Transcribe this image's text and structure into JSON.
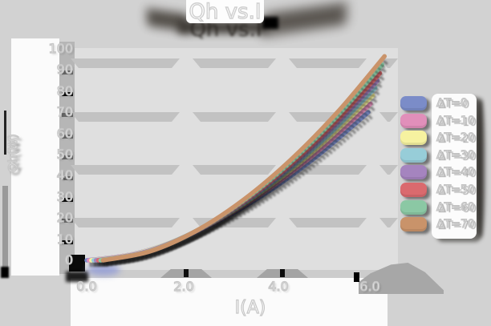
{
  "title": "Qh vs.I",
  "x_axis": {
    "label": "I(A)",
    "ticks": [
      "0.0",
      "2.0",
      "4.0",
      "6.0"
    ]
  },
  "y_axis": {
    "label": "Qh(W)",
    "ticks": [
      "0",
      "10",
      "20",
      "30",
      "40",
      "50",
      "60",
      "70",
      "80",
      "90",
      "100"
    ]
  },
  "legend": {
    "position": "right",
    "items": [
      {
        "label": "ΔT=0",
        "color": "#7b8cc8"
      },
      {
        "label": "ΔT=10",
        "color": "#e18fba"
      },
      {
        "label": "ΔT=20",
        "color": "#f6f2a0"
      },
      {
        "label": "ΔT=30",
        "color": "#97cdd8"
      },
      {
        "label": "ΔT=40",
        "color": "#a584bf"
      },
      {
        "label": "ΔT=50",
        "color": "#da6a6e"
      },
      {
        "label": "ΔT=60",
        "color": "#8bc8a4"
      },
      {
        "label": "ΔT=70",
        "color": "#c9936a"
      }
    ]
  },
  "chart_data": {
    "type": "line",
    "title": "Qh vs.I",
    "xlabel": "I(A)",
    "ylabel": "Qh(W)",
    "xlim": [
      0.0,
      6.0
    ],
    "ylim": [
      0,
      100
    ],
    "grid": "horizontal-bands",
    "legend_position": "right",
    "background_color": "#d2d2d2",
    "x": [
      0,
      1,
      2,
      3,
      4,
      5,
      6
    ],
    "series": [
      {
        "name": "ΔT=0",
        "color": "#7b8cc8",
        "values": [
          0,
          3.0,
          10.2,
          20.8,
          34.4,
          50.9,
          70.0
        ]
      },
      {
        "name": "ΔT=10",
        "color": "#e18fba",
        "values": [
          0,
          3.2,
          10.8,
          22.0,
          36.4,
          53.8,
          74.0
        ]
      },
      {
        "name": "ΔT=20",
        "color": "#f6f2a0",
        "values": [
          0,
          3.4,
          11.4,
          23.2,
          38.4,
          56.7,
          78.0
        ]
      },
      {
        "name": "ΔT=30",
        "color": "#97cdd8",
        "values": [
          0,
          3.5,
          11.9,
          24.2,
          40.1,
          59.2,
          81.5
        ]
      },
      {
        "name": "ΔT=40",
        "color": "#a584bf",
        "values": [
          0,
          3.7,
          12.4,
          25.3,
          41.8,
          61.8,
          85.0
        ]
      },
      {
        "name": "ΔT=50",
        "color": "#da6a6e",
        "values": [
          0,
          3.8,
          12.9,
          26.3,
          43.5,
          64.3,
          88.5
        ]
      },
      {
        "name": "ΔT=60",
        "color": "#8bc8a4",
        "values": [
          0,
          4.0,
          13.5,
          27.5,
          45.5,
          67.2,
          92.5
        ]
      },
      {
        "name": "ΔT=70",
        "color": "#c9936a",
        "values": [
          0,
          4.2,
          14.1,
          28.7,
          47.5,
          70.1,
          96.5
        ]
      }
    ]
  }
}
